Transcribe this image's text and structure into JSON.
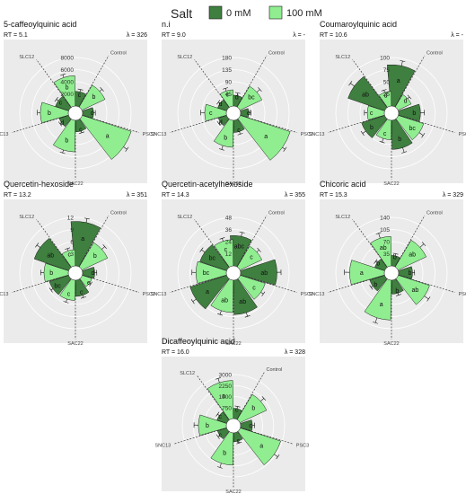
{
  "legend": {
    "title": "Salt",
    "items": [
      {
        "label": "0 mM",
        "color": "#3f7f3f"
      },
      {
        "label": "100 mM",
        "color": "#90ee90"
      }
    ]
  },
  "colors": {
    "panel_bg": "#ebebeb",
    "grid": "#ffffff",
    "dark": "#3f7f3f",
    "light": "#90ee90",
    "edge": "#1a1a1a"
  },
  "chart_data": [
    {
      "type": "polar-bar",
      "title": "5-caffeoylquinic acid",
      "rt": "RT = 5.1",
      "lambda": "λ = 326",
      "categories": [
        "Control",
        "PSC3",
        "SAC22",
        "SNC13",
        "SLC12"
      ],
      "ticks": [
        "2000",
        "4000",
        "6000",
        "8000"
      ],
      "ylim": [
        0,
        8000
      ],
      "series": [
        {
          "name": "0 mM",
          "values": [
            2400,
            1800,
            1900,
            1600,
            2300
          ],
          "errors": [
            400,
            300,
            300,
            300,
            400
          ],
          "letters": [
            "c",
            "d",
            "c",
            "d",
            "c"
          ]
        },
        {
          "name": "100 mM",
          "values": [
            4200,
            8500,
            5200,
            4600,
            5000
          ],
          "errors": [
            500,
            800,
            500,
            500,
            500
          ],
          "letters": [
            "b",
            "a",
            "b",
            "b",
            "b"
          ]
        }
      ]
    },
    {
      "type": "polar-bar",
      "title": "n.i",
      "rt": "RT = 9.0",
      "lambda": "λ = -",
      "categories": [
        "Control",
        "PSC3",
        "SAC22",
        "SNC13",
        "SLC12"
      ],
      "ticks": [
        "45",
        "90",
        "135",
        "180"
      ],
      "ylim": [
        0,
        180
      ],
      "series": [
        {
          "name": "0 mM",
          "values": [
            40,
            30,
            45,
            32,
            35
          ],
          "errors": [
            10,
            8,
            10,
            8,
            8
          ],
          "letters": [
            "d",
            "d",
            "c",
            "d",
            "d"
          ]
        },
        {
          "name": "100 mM",
          "values": [
            90,
            195,
            100,
            80,
            60
          ],
          "errors": [
            15,
            25,
            15,
            15,
            10
          ],
          "letters": [
            "bc",
            "a",
            "b",
            "c",
            "c"
          ]
        }
      ]
    },
    {
      "type": "polar-bar",
      "title": "Coumaroylquinic acid",
      "rt": "RT = 10.6",
      "lambda": "λ = -",
      "categories": [
        "Control",
        "PSC3",
        "SAC22",
        "SNC13",
        "SLC12"
      ],
      "ticks": [
        "25",
        "50",
        "75",
        "100"
      ],
      "ylim": [
        0,
        100
      ],
      "series": [
        {
          "name": "0 mM",
          "values": [
            85,
            45,
            60,
            50,
            80
          ],
          "errors": [
            10,
            8,
            10,
            8,
            10
          ],
          "letters": [
            "a",
            "b",
            "b",
            "b",
            "ab"
          ]
        },
        {
          "name": "100 mM",
          "values": [
            30,
            55,
            40,
            35,
            30
          ],
          "errors": [
            5,
            10,
            8,
            6,
            5
          ],
          "letters": [
            "d",
            "bc",
            "c",
            "c",
            "d"
          ]
        }
      ]
    },
    {
      "type": "polar-bar",
      "title": "Quercetin-hexoside",
      "rt": "RT = 13.2",
      "lambda": "λ = 351",
      "categories": [
        "Control",
        "PSC3",
        "SAC22",
        "SNC13",
        "SLC12"
      ],
      "ticks": [
        "3",
        "6",
        "9",
        "12"
      ],
      "ylim": [
        0,
        12
      ],
      "series": [
        {
          "name": "0 mM",
          "values": [
            11,
            3,
            4,
            5,
            9
          ],
          "errors": [
            1,
            0.5,
            0.6,
            0.6,
            1
          ],
          "letters": [
            "a",
            "d",
            "c",
            "bc",
            "ab"
          ]
        },
        {
          "name": "100 mM",
          "values": [
            7,
            2.5,
            5,
            6,
            4
          ],
          "errors": [
            1,
            0.4,
            0.8,
            0.8,
            0.6
          ],
          "letters": [
            "b",
            "e",
            "c",
            "b",
            "c"
          ]
        }
      ]
    },
    {
      "type": "polar-bar",
      "title": "Quercetin-acetylhexoside",
      "rt": "RT = 14.3",
      "lambda": "λ = 355",
      "categories": [
        "Control",
        "PSC3",
        "SAC22",
        "SNC13",
        "SLC12"
      ],
      "ticks": [
        "12",
        "24",
        "36",
        "48"
      ],
      "ylim": [
        0,
        48
      ],
      "series": [
        {
          "name": "0 mM",
          "values": [
            30,
            36,
            34,
            38,
            28
          ],
          "errors": [
            4,
            4,
            4,
            4,
            4
          ],
          "letters": [
            "abc",
            "ab",
            "ab",
            "a",
            "bc"
          ]
        },
        {
          "name": "100 mM",
          "values": [
            24,
            26,
            32,
            30,
            26
          ],
          "errors": [
            3,
            3,
            4,
            4,
            3
          ],
          "letters": [
            "c",
            "c",
            "ab",
            "bc",
            "c"
          ]
        }
      ]
    },
    {
      "type": "polar-bar",
      "title": "Chicoric acid",
      "rt": "RT = 15.3",
      "lambda": "λ = 329",
      "categories": [
        "Control",
        "PSC3",
        "SAC22",
        "SNC13",
        "SLC12"
      ],
      "ticks": [
        "35",
        "70",
        "105",
        "140"
      ],
      "ylim": [
        0,
        140
      ],
      "series": [
        {
          "name": "0 mM",
          "values": [
            30,
            40,
            40,
            45,
            30
          ],
          "errors": [
            6,
            6,
            6,
            6,
            6
          ],
          "letters": [
            "b",
            "b",
            "b",
            "b",
            "b"
          ]
        },
        {
          "name": "100 mM",
          "values": [
            90,
            95,
            115,
            100,
            85
          ],
          "errors": [
            15,
            15,
            15,
            15,
            15
          ],
          "letters": [
            "ab",
            "ab",
            "a",
            "a",
            "ab"
          ]
        }
      ]
    },
    {
      "type": "polar-bar",
      "title": "Dicaffeoylquinic acid",
      "rt": "RT = 16.0",
      "lambda": "λ = 328",
      "categories": [
        "Control",
        "PSC3",
        "SAC22",
        "SNC13",
        "SLC12"
      ],
      "ticks": [
        "750",
        "1500",
        "2250",
        "3000"
      ],
      "ylim": [
        0,
        3000
      ],
      "series": [
        {
          "name": "0 mM",
          "values": [
            700,
            800,
            600,
            650,
            700
          ],
          "errors": [
            150,
            150,
            150,
            150,
            150
          ],
          "letters": [
            "c",
            "c",
            "c",
            "c",
            "c"
          ]
        },
        {
          "name": "100 mM",
          "values": [
            2000,
            2900,
            2200,
            1900,
            2600
          ],
          "errors": [
            300,
            300,
            300,
            300,
            300
          ],
          "letters": [
            "b",
            "a",
            "b",
            "b",
            "a"
          ]
        }
      ]
    }
  ]
}
